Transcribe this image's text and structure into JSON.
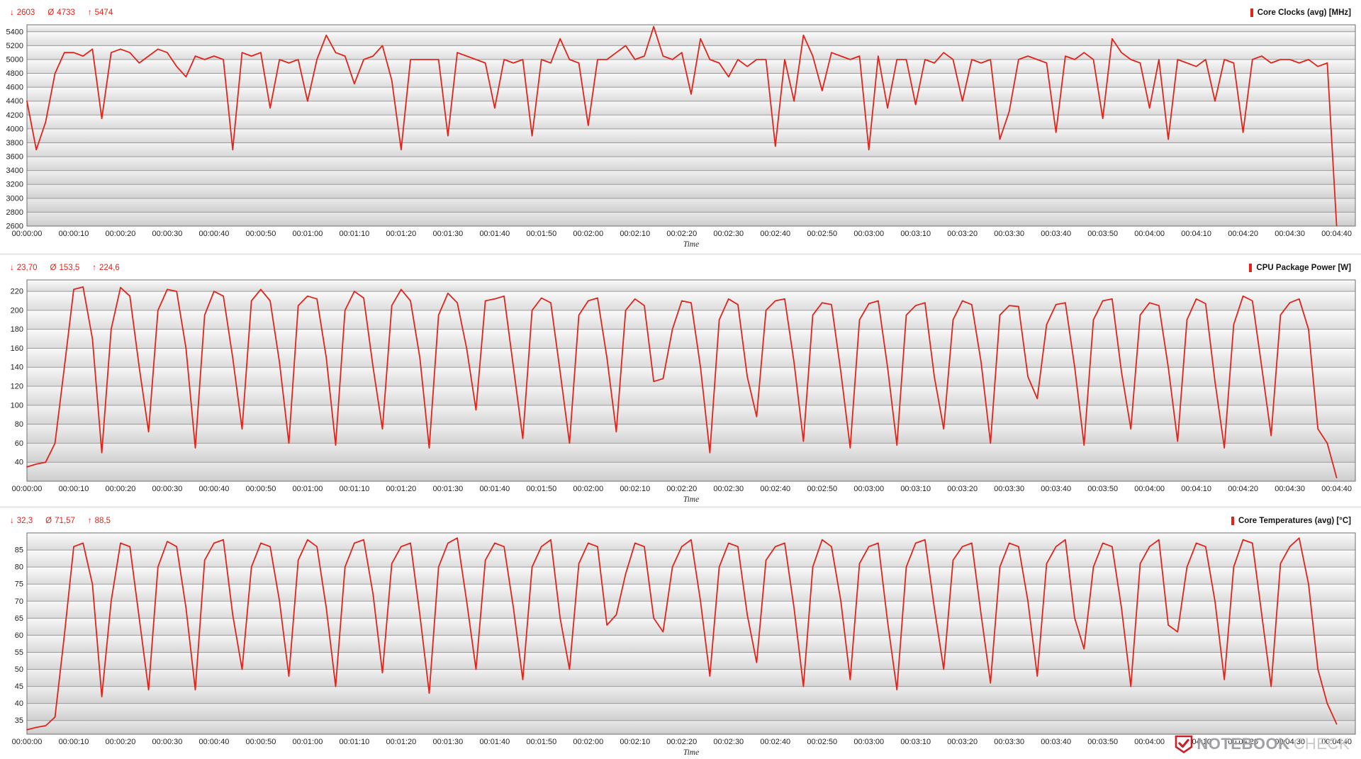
{
  "theme": {
    "accent": "#e2231a",
    "grid_color": "#9b9b9b",
    "plot_border": "#6e6e6e"
  },
  "icons": {
    "min": "↓",
    "avg": "Ø",
    "max": "↑",
    "logo": "notebookcheck-shield-check"
  },
  "watermark": {
    "word1": "NOTEBOOK",
    "word2": "CHECK"
  },
  "time_axis": {
    "label": "Time",
    "tick_interval_s": 10,
    "range_s": [
      0,
      284
    ],
    "ticks": [
      "00:00:00",
      "00:00:10",
      "00:00:20",
      "00:00:30",
      "00:00:40",
      "00:00:50",
      "00:01:00",
      "00:01:10",
      "00:01:20",
      "00:01:30",
      "00:01:40",
      "00:01:50",
      "00:02:00",
      "00:02:10",
      "00:02:20",
      "00:02:30",
      "00:02:40",
      "00:02:50",
      "00:03:00",
      "00:03:10",
      "00:03:20",
      "00:03:30",
      "00:03:40",
      "00:03:50",
      "00:04:00",
      "00:04:10",
      "00:04:20",
      "00:04:30",
      "00:04:40"
    ]
  },
  "chart_data": [
    {
      "type": "line",
      "title": "Core Clocks (avg) [MHz]",
      "stats": {
        "min": "2603",
        "avg": "4733",
        "max": "5474"
      },
      "line_color": "#e2231a",
      "xlabel": "Time",
      "grid": "horizontal",
      "legend_position": "top-right",
      "ylim": [
        2600,
        5500
      ],
      "y_ticks": [
        2600,
        2800,
        3000,
        3200,
        3400,
        3600,
        3800,
        4000,
        4200,
        4400,
        4600,
        4800,
        5000,
        5200,
        5400
      ],
      "x_step_s": 2,
      "values": [
        4400,
        3700,
        4100,
        4800,
        5100,
        5100,
        5050,
        5150,
        4150,
        5100,
        5150,
        5100,
        4950,
        5050,
        5150,
        5100,
        4900,
        4750,
        5050,
        5000,
        5050,
        5000,
        3700,
        5100,
        5050,
        5100,
        4300,
        5000,
        4950,
        5000,
        4400,
        5000,
        5350,
        5100,
        5050,
        4650,
        5000,
        5050,
        5200,
        4700,
        3700,
        5000,
        5000,
        5000,
        5000,
        3900,
        5100,
        5050,
        5000,
        4950,
        4300,
        5000,
        4950,
        5000,
        3900,
        5000,
        4950,
        5300,
        5000,
        4950,
        4050,
        5000,
        5000,
        5100,
        5200,
        5000,
        5050,
        5474,
        5050,
        5000,
        5100,
        4500,
        5300,
        5000,
        4950,
        4750,
        5000,
        4900,
        5000,
        5000,
        3750,
        5000,
        4400,
        5350,
        5050,
        4550,
        5100,
        5050,
        5000,
        5050,
        3700,
        5050,
        4300,
        5000,
        5000,
        4350,
        5000,
        4950,
        5100,
        5000,
        4400,
        5000,
        4950,
        5000,
        3850,
        4250,
        5000,
        5050,
        5000,
        4950,
        3950,
        5050,
        5000,
        5100,
        5000,
        4150,
        5300,
        5100,
        5000,
        4950,
        4300,
        5000,
        3850,
        5000,
        4950,
        4900,
        5000,
        4400,
        5000,
        4950,
        3950,
        5000,
        5050,
        4950,
        5000,
        5000,
        4950,
        5000,
        4900,
        4950,
        2603
      ]
    },
    {
      "type": "line",
      "title": "CPU Package Power [W]",
      "stats": {
        "min": "23,70",
        "avg": "153,5",
        "max": "224,6"
      },
      "line_color": "#e2231a",
      "xlabel": "Time",
      "grid": "horizontal",
      "legend_position": "top-right",
      "ylim": [
        20,
        232
      ],
      "y_ticks": [
        40,
        60,
        80,
        100,
        120,
        140,
        160,
        180,
        200,
        220
      ],
      "x_step_s": 2,
      "values": [
        35,
        38,
        40,
        60,
        140,
        222,
        224.6,
        170,
        50,
        180,
        224,
        215,
        140,
        72,
        200,
        222,
        220,
        160,
        55,
        195,
        220,
        215,
        150,
        75,
        210,
        222,
        210,
        145,
        60,
        205,
        215,
        212,
        150,
        58,
        200,
        220,
        213,
        140,
        75,
        205,
        222,
        210,
        150,
        55,
        195,
        218,
        208,
        160,
        95,
        210,
        212,
        215,
        140,
        65,
        200,
        213,
        208,
        135,
        60,
        195,
        210,
        213,
        150,
        72,
        200,
        212,
        205,
        125,
        128,
        180,
        210,
        208,
        140,
        50,
        190,
        212,
        206,
        130,
        88,
        200,
        210,
        212,
        145,
        62,
        195,
        208,
        206,
        135,
        55,
        190,
        207,
        210,
        140,
        58,
        195,
        205,
        208,
        130,
        75,
        190,
        210,
        206,
        145,
        60,
        195,
        205,
        204,
        130,
        107,
        185,
        206,
        208,
        140,
        58,
        190,
        210,
        212,
        135,
        75,
        195,
        208,
        205,
        140,
        62,
        190,
        212,
        207,
        125,
        55,
        185,
        215,
        210,
        140,
        68,
        195,
        208,
        212,
        180,
        75,
        60,
        23.7
      ]
    },
    {
      "type": "line",
      "title": "Core Temperatures (avg) [°C]",
      "stats": {
        "min": "32,3",
        "avg": "71,57",
        "max": "88,5"
      },
      "line_color": "#e2231a",
      "xlabel": "Time",
      "grid": "horizontal",
      "legend_position": "top-right",
      "ylim": [
        31,
        90
      ],
      "y_ticks": [
        35,
        40,
        45,
        50,
        55,
        60,
        65,
        70,
        75,
        80,
        85
      ],
      "x_step_s": 2,
      "values": [
        32.3,
        33,
        33.5,
        36,
        60,
        86,
        87,
        75,
        42,
        70,
        87,
        86,
        65,
        44,
        80,
        87.5,
        86,
        68,
        44,
        82,
        87,
        88,
        66,
        50,
        80,
        87,
        86,
        70,
        48,
        82,
        88,
        86,
        68,
        45,
        80,
        87,
        88,
        72,
        49,
        81,
        86,
        87,
        66,
        43,
        80,
        87,
        88.5,
        70,
        50,
        82,
        87,
        86,
        68,
        47,
        80,
        86,
        88,
        65,
        50,
        81,
        87,
        86,
        63,
        66,
        78,
        87,
        86,
        65,
        61,
        80,
        86,
        88,
        70,
        48,
        80,
        87,
        86,
        66,
        52,
        82,
        86,
        87,
        68,
        45,
        80,
        88,
        86,
        70,
        47,
        81,
        86,
        87,
        64,
        44,
        80,
        87,
        88,
        68,
        50,
        82,
        86,
        87,
        66,
        46,
        80,
        87,
        86,
        70,
        48,
        81,
        86,
        88,
        65,
        56,
        80,
        87,
        86,
        68,
        45,
        81,
        86,
        88,
        63,
        61,
        80,
        87,
        86,
        70,
        47,
        80,
        88,
        87,
        66,
        45,
        81,
        86,
        88.5,
        75,
        50,
        40,
        34
      ]
    }
  ]
}
